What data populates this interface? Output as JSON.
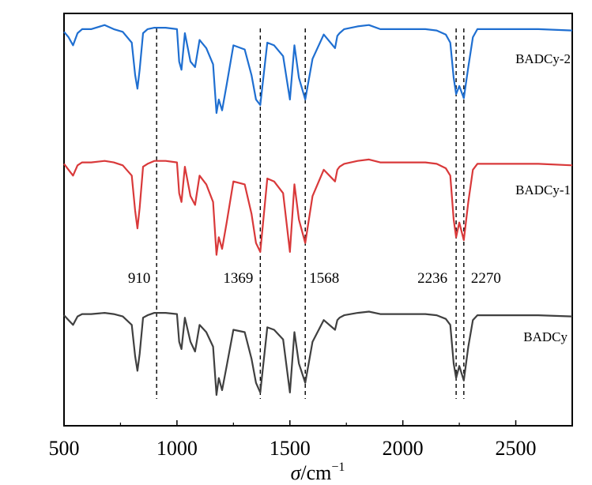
{
  "chart_data": {
    "type": "line",
    "title": "",
    "xlabel_symbol": "σ",
    "xlabel_unit": "/cm",
    "xlabel_exp": "−1",
    "ylabel": "",
    "xlim": [
      500,
      2750
    ],
    "x_ticks": [
      500,
      1000,
      1500,
      2000,
      2500
    ],
    "x_tick_labels": [
      "500",
      "1000",
      "1500",
      "2000",
      "2500"
    ],
    "y_ticks_shown": false,
    "grid": false,
    "legend": "none",
    "reference_lines": [
      {
        "x": 910,
        "label": "910"
      },
      {
        "x": 1369,
        "label": "1369"
      },
      {
        "x": 1568,
        "label": "1568"
      },
      {
        "x": 2236,
        "label": "2236"
      },
      {
        "x": 2270,
        "label": "2270"
      }
    ],
    "series": [
      {
        "name": "BADCy-2",
        "color": "#1f6fd1",
        "offset": 0,
        "x": [
          500,
          520,
          540,
          560,
          580,
          620,
          680,
          720,
          760,
          800,
          815,
          825,
          835,
          850,
          870,
          900,
          950,
          1000,
          1010,
          1020,
          1035,
          1060,
          1080,
          1100,
          1130,
          1160,
          1175,
          1185,
          1200,
          1220,
          1250,
          1300,
          1330,
          1350,
          1369,
          1400,
          1430,
          1470,
          1500,
          1520,
          1540,
          1568,
          1600,
          1650,
          1700,
          1710,
          1720,
          1740,
          1800,
          1850,
          1900,
          2000,
          2100,
          2150,
          2190,
          2210,
          2225,
          2236,
          2250,
          2270,
          2290,
          2310,
          2330,
          2400,
          2500,
          2600,
          2750
        ],
        "y": [
          0.94,
          0.9,
          0.84,
          0.93,
          0.96,
          0.96,
          0.99,
          0.96,
          0.94,
          0.86,
          0.62,
          0.52,
          0.66,
          0.93,
          0.96,
          0.97,
          0.97,
          0.96,
          0.72,
          0.66,
          0.93,
          0.72,
          0.68,
          0.88,
          0.82,
          0.7,
          0.34,
          0.44,
          0.36,
          0.55,
          0.84,
          0.81,
          0.62,
          0.44,
          0.4,
          0.86,
          0.84,
          0.76,
          0.44,
          0.84,
          0.6,
          0.44,
          0.74,
          0.92,
          0.82,
          0.91,
          0.93,
          0.96,
          0.98,
          0.99,
          0.96,
          0.96,
          0.96,
          0.95,
          0.92,
          0.86,
          0.6,
          0.48,
          0.54,
          0.45,
          0.68,
          0.9,
          0.96,
          0.96,
          0.96,
          0.96,
          0.95
        ]
      },
      {
        "name": "BADCy-1",
        "color": "#d9393a",
        "offset": 0,
        "x": [
          500,
          520,
          540,
          560,
          580,
          620,
          680,
          720,
          760,
          800,
          815,
          825,
          835,
          850,
          870,
          900,
          950,
          1000,
          1010,
          1020,
          1035,
          1060,
          1080,
          1100,
          1130,
          1160,
          1175,
          1185,
          1200,
          1220,
          1250,
          1300,
          1330,
          1350,
          1369,
          1400,
          1430,
          1470,
          1500,
          1520,
          1540,
          1568,
          1600,
          1650,
          1700,
          1710,
          1720,
          1740,
          1800,
          1850,
          1900,
          2000,
          2100,
          2150,
          2190,
          2210,
          2225,
          2236,
          2250,
          2270,
          2290,
          2310,
          2330,
          2400,
          2500,
          2600,
          2750
        ],
        "y": [
          0.96,
          0.92,
          0.88,
          0.95,
          0.97,
          0.97,
          0.98,
          0.97,
          0.95,
          0.88,
          0.64,
          0.52,
          0.66,
          0.94,
          0.96,
          0.98,
          0.98,
          0.97,
          0.76,
          0.7,
          0.94,
          0.74,
          0.68,
          0.88,
          0.82,
          0.7,
          0.34,
          0.46,
          0.38,
          0.56,
          0.84,
          0.82,
          0.62,
          0.42,
          0.36,
          0.86,
          0.84,
          0.76,
          0.36,
          0.82,
          0.58,
          0.42,
          0.74,
          0.92,
          0.84,
          0.92,
          0.94,
          0.96,
          0.98,
          0.99,
          0.97,
          0.97,
          0.97,
          0.96,
          0.93,
          0.88,
          0.58,
          0.46,
          0.56,
          0.44,
          0.7,
          0.92,
          0.96,
          0.96,
          0.96,
          0.96,
          0.95
        ]
      },
      {
        "name": "BADCy",
        "color": "#404040",
        "offset": 0,
        "x": [
          500,
          520,
          540,
          560,
          580,
          620,
          680,
          720,
          760,
          800,
          815,
          825,
          835,
          850,
          870,
          900,
          950,
          1000,
          1010,
          1020,
          1035,
          1060,
          1080,
          1100,
          1130,
          1160,
          1175,
          1185,
          1200,
          1220,
          1250,
          1300,
          1330,
          1350,
          1369,
          1400,
          1430,
          1470,
          1500,
          1520,
          1540,
          1568,
          1600,
          1650,
          1700,
          1710,
          1720,
          1740,
          1800,
          1850,
          1900,
          2000,
          2100,
          2150,
          2190,
          2210,
          2225,
          2236,
          2250,
          2270,
          2290,
          2310,
          2330,
          2400,
          2500,
          2600,
          2750
        ],
        "y": [
          0.96,
          0.92,
          0.88,
          0.95,
          0.97,
          0.97,
          0.98,
          0.97,
          0.95,
          0.88,
          0.62,
          0.5,
          0.64,
          0.94,
          0.96,
          0.98,
          0.98,
          0.97,
          0.74,
          0.68,
          0.94,
          0.74,
          0.66,
          0.88,
          0.82,
          0.7,
          0.3,
          0.44,
          0.34,
          0.54,
          0.84,
          0.82,
          0.6,
          0.4,
          0.32,
          0.86,
          0.84,
          0.76,
          0.32,
          0.82,
          0.56,
          0.4,
          0.74,
          0.92,
          0.84,
          0.92,
          0.94,
          0.96,
          0.98,
          0.99,
          0.97,
          0.97,
          0.97,
          0.96,
          0.93,
          0.88,
          0.56,
          0.44,
          0.54,
          0.42,
          0.7,
          0.92,
          0.96,
          0.96,
          0.96,
          0.96,
          0.95
        ]
      }
    ]
  }
}
